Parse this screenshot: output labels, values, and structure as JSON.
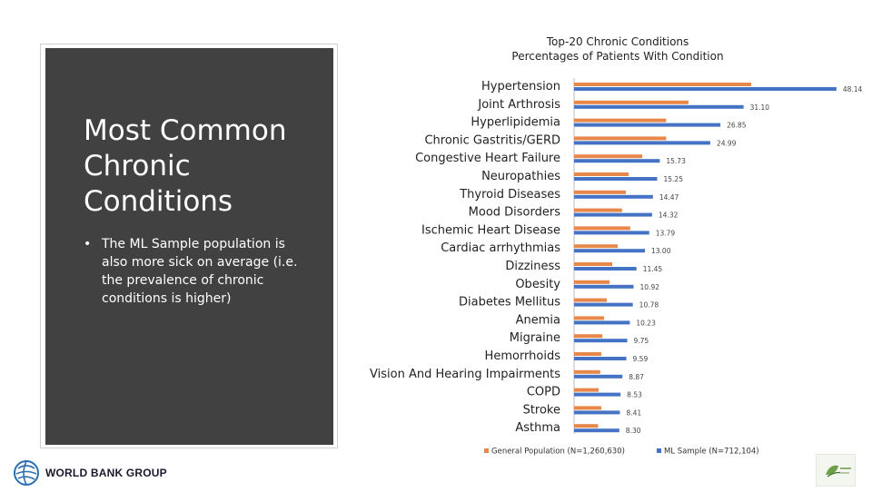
{
  "panel": {
    "title_lines": [
      "Most Common",
      "Chronic",
      "Conditions"
    ],
    "bullet": "The ML Sample population is also more sick on average (i.e. the prevalence of chronic conditions is higher)"
  },
  "logo": {
    "text": "WORLD BANK GROUP",
    "icon": "globe-icon"
  },
  "colors": {
    "general": "#e8874a",
    "ml": "#4472c4",
    "panel": "#414141"
  },
  "chart_data": {
    "type": "bar",
    "orientation": "horizontal",
    "title": "Top-20 Chronic Conditions",
    "subtitle": "Percentages of Patients With Condition",
    "categories": [
      "Hypertension",
      "Joint Arthrosis",
      "Hyperlipidemia",
      "Chronic Gastritis/GERD",
      "Congestive Heart Failure",
      "Neuropathies",
      "Thyroid Diseases",
      "Mood Disorders",
      "Ischemic Heart Disease",
      "Cardiac arrhythmias",
      "Dizziness",
      "Obesity",
      "Diabetes Mellitus",
      "Anemia",
      "Migraine",
      "Hemorrhoids",
      "Vision And Hearing Impairments",
      "COPD",
      "Stroke",
      "Asthma"
    ],
    "series": [
      {
        "name": "General Population (N=1,260,630)",
        "values": [
          32.5,
          21.0,
          16.9,
          16.9,
          12.5,
          10.0,
          9.5,
          8.8,
          10.3,
          8.0,
          7.0,
          6.5,
          6.0,
          5.5,
          5.2,
          5.0,
          4.8,
          4.5,
          5.0,
          4.4
        ]
      },
      {
        "name": "ML Sample (N=712,104)",
        "values": [
          48.14,
          31.1,
          26.85,
          24.99,
          15.73,
          15.25,
          14.47,
          14.32,
          13.79,
          13.0,
          11.45,
          10.92,
          10.78,
          10.23,
          9.75,
          9.59,
          8.87,
          8.53,
          8.41,
          8.3
        ]
      }
    ],
    "value_labels": [
      "48.14",
      "31.10",
      "26.85",
      "24.99",
      "15.73",
      "15.25",
      "14.47",
      "14.32",
      "13.79",
      "13.00",
      "11.45",
      "10.92",
      "10.78",
      "10.23",
      "9.75",
      "9.59",
      "8.87",
      "8.53",
      "8.41",
      "8.30"
    ],
    "xlim": [
      0,
      50
    ],
    "grid": false,
    "legend": "bottom"
  }
}
